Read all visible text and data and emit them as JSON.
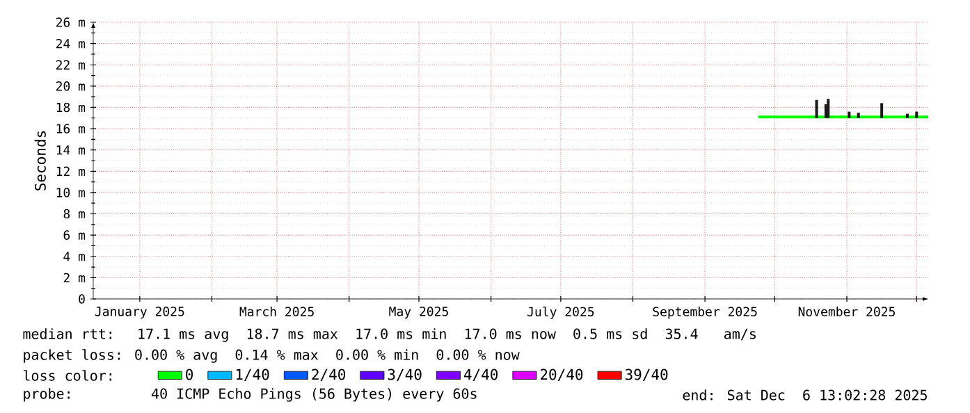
{
  "chart_data": {
    "type": "line",
    "ylabel": "Seconds",
    "legend_title": "loss color:",
    "xlim": [
      "2024-12-12",
      "2025-12-06"
    ],
    "xticks": [
      {
        "value": "2025-01-01",
        "label": "January 2025"
      },
      {
        "value": "2025-02-01",
        "label": null
      },
      {
        "value": "2025-03-01",
        "label": "March 2025"
      },
      {
        "value": "2025-04-01",
        "label": null
      },
      {
        "value": "2025-05-01",
        "label": "May 2025"
      },
      {
        "value": "2025-06-01",
        "label": null
      },
      {
        "value": "2025-07-01",
        "label": "July 2025"
      },
      {
        "value": "2025-08-01",
        "label": null
      },
      {
        "value": "2025-09-01",
        "label": "September 2025"
      },
      {
        "value": "2025-10-01",
        "label": null
      },
      {
        "value": "2025-11-01",
        "label": "November 2025"
      },
      {
        "value": "2025-12-01",
        "label": null
      }
    ],
    "ylim": [
      0,
      26
    ],
    "yticks": [
      {
        "value": 0,
        "label": "0"
      },
      {
        "value": 2,
        "label": "2 m"
      },
      {
        "value": 4,
        "label": "4 m"
      },
      {
        "value": 6,
        "label": "6 m"
      },
      {
        "value": 8,
        "label": "8 m"
      },
      {
        "value": 10,
        "label": "10 m"
      },
      {
        "value": 12,
        "label": "12 m"
      },
      {
        "value": 14,
        "label": "14 m"
      },
      {
        "value": 16,
        "label": "16 m"
      },
      {
        "value": 18,
        "label": "18 m"
      },
      {
        "value": 20,
        "label": "20 m"
      },
      {
        "value": 22,
        "label": "22 m"
      },
      {
        "value": 24,
        "label": "24 m"
      },
      {
        "value": 26,
        "label": "26 m"
      }
    ],
    "grid": true,
    "legend": "bottom",
    "series": [
      {
        "type": "bar",
        "color": "#1a1a1a",
        "x": [
          "2025-10-19",
          "2025-10-23",
          "2025-10-24",
          "2025-11-02",
          "2025-11-06",
          "2025-11-16",
          "2025-11-27",
          "2025-12-01"
        ],
        "base": [
          17.0,
          17.0,
          17.0,
          17.0,
          17.0,
          17.0,
          17.0,
          17.0
        ],
        "values": [
          1.7,
          1.3,
          1.8,
          0.6,
          0.5,
          1.4,
          0.4,
          0.6
        ]
      },
      {
        "name": "0",
        "color": "#00ff00",
        "x": [
          "2025-09-24",
          "2025-10-15",
          "2025-11-05",
          "2025-11-26",
          "2025-12-06"
        ],
        "values": [
          17.1,
          17.1,
          17.1,
          17.1,
          17.1
        ]
      },
      {
        "name": "1/40",
        "color": "#00b8ff",
        "values": [
          null
        ]
      },
      {
        "name": "2/40",
        "color": "#0059ff",
        "values": [
          null
        ]
      },
      {
        "name": "3/40",
        "color": "#5e00ff",
        "values": [
          null
        ]
      },
      {
        "name": "4/40",
        "color": "#7e00ff",
        "values": [
          null
        ]
      },
      {
        "name": "20/40",
        "color": "#dd00ff",
        "values": [
          null
        ]
      },
      {
        "name": "39/40",
        "color": "#ff0000",
        "values": [
          null
        ]
      }
    ],
    "annotations": [
      "median rtt:  17.1 ms avg  18.7 ms max  17.0 ms min  17.0 ms now  0.5 ms sd  35.4   am/s",
      "packet loss: 0.00 % avg  0.14 % max  0.00 % min  0.00 % now",
      "probe:       40 ICMP Echo Pings (56 Bytes) every 60s",
      "end: Sat Dec  6 13:02:28 2025"
    ]
  }
}
